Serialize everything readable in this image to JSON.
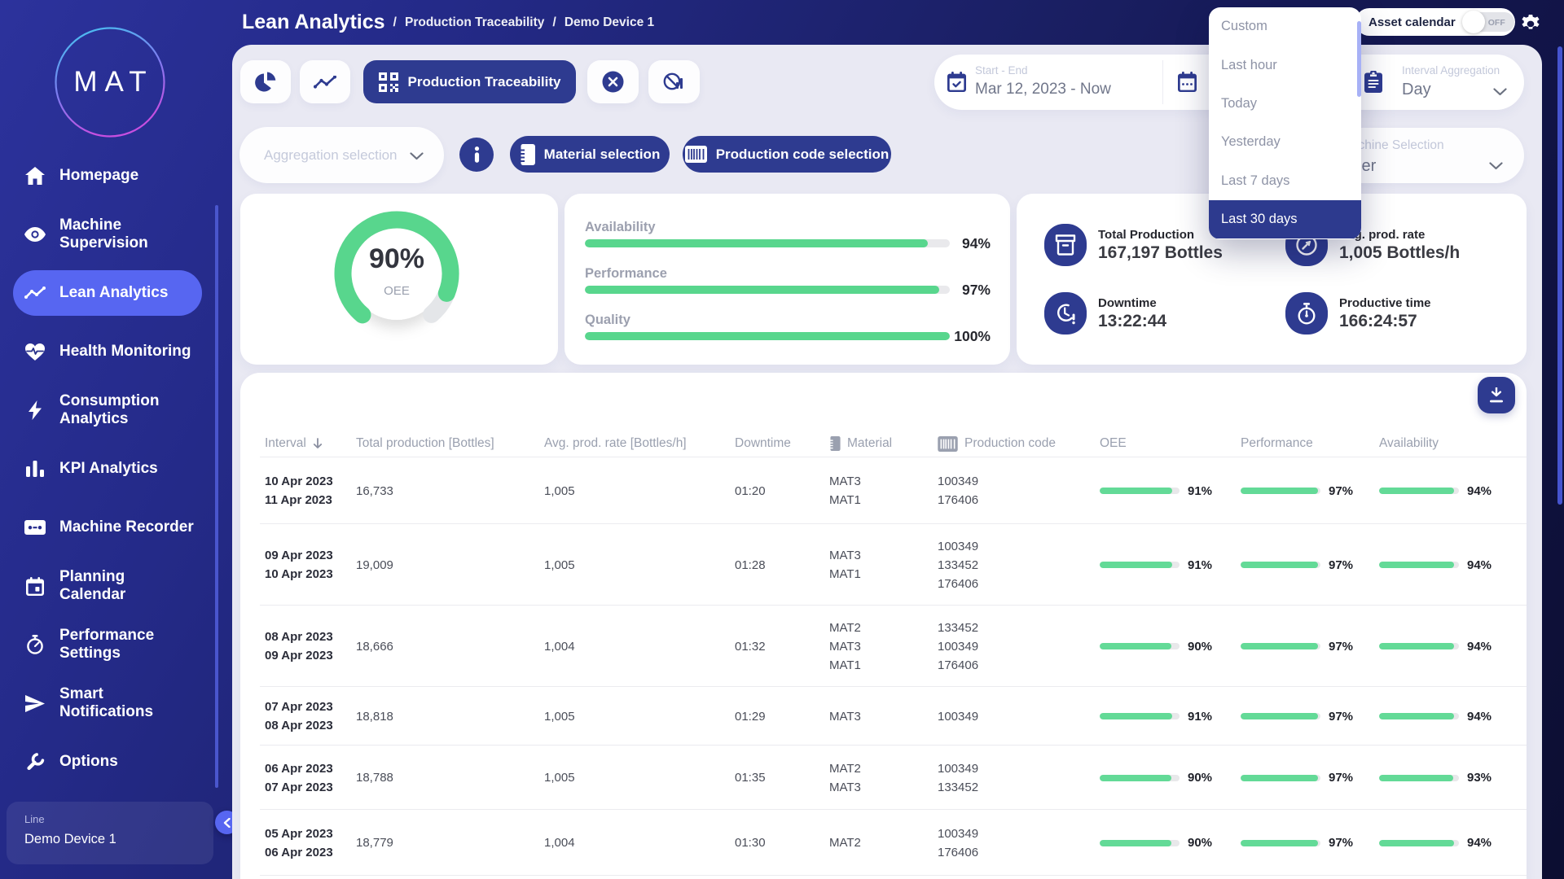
{
  "colors": {
    "navy": "#2e3b90",
    "periwinkle": "#5766f1",
    "green": "#58d68d",
    "table_green": "#63da97"
  },
  "sidebar": {
    "logo_text": "MAT",
    "items": [
      {
        "label": "Homepage",
        "icon": "home-icon"
      },
      {
        "label": "Machine Supervision",
        "icon": "eye-icon"
      },
      {
        "label": "Lean Analytics",
        "icon": "trend-icon",
        "active": true
      },
      {
        "label": "Health Monitoring",
        "icon": "heart-pulse-icon"
      },
      {
        "label": "Consumption Analytics",
        "icon": "bolt-icon"
      },
      {
        "label": "KPI Analytics",
        "icon": "bar-chart-icon"
      },
      {
        "label": "Machine Recorder",
        "icon": "recorder-icon"
      },
      {
        "label": "Planning Calendar",
        "icon": "calendar-icon"
      },
      {
        "label": "Performance Settings",
        "icon": "stopwatch-icon"
      },
      {
        "label": "Smart Notifications",
        "icon": "send-icon"
      },
      {
        "label": "Options",
        "icon": "wrench-icon"
      }
    ],
    "device": {
      "label": "Line",
      "name": "Demo Device 1"
    }
  },
  "header": {
    "title": "Lean Analytics",
    "breadcrumb": [
      "Production Traceability",
      "Demo Device 1"
    ],
    "asset_calendar_label": "Asset calendar",
    "asset_calendar_state": "OFF"
  },
  "toolbar": {
    "active_view": "Production Traceability",
    "date_label": "Start - End",
    "date_value": "Mar 12, 2023 - Now",
    "interval_label": "Interval Aggregation",
    "interval_value": "Day"
  },
  "filters": {
    "aggregation_placeholder": "Aggregation selection",
    "material_button": "Material selection",
    "production_code_button": "Production code selection",
    "machine_label": "Machine Selection",
    "machine_value": "Filler"
  },
  "date_menu": {
    "items": [
      "Custom",
      "Last hour",
      "Today",
      "Yesterday",
      "Last 7 days",
      "Last 30 days"
    ],
    "selected": "Last 30 days"
  },
  "kpis": {
    "oee_gauge": {
      "value": 90,
      "label": "OEE"
    },
    "metrics": [
      {
        "label": "Availability",
        "value": 94
      },
      {
        "label": "Performance",
        "value": 97
      },
      {
        "label": "Quality",
        "value": 100
      }
    ],
    "stats": [
      {
        "label": "Total Production",
        "value": "167,197 Bottles"
      },
      {
        "label": "Avg. prod. rate",
        "value": "1,005 Bottles/h"
      },
      {
        "label": "Downtime",
        "value": "13:22:44"
      },
      {
        "label": "Productive time",
        "value": "166:24:57"
      }
    ]
  },
  "table": {
    "columns": [
      "Interval",
      "Total production [Bottles]",
      "Avg. prod. rate [Bottles/h]",
      "Downtime",
      "Material",
      "Production code",
      "OEE",
      "Performance",
      "Availability"
    ],
    "rows": [
      {
        "interval": [
          "10 Apr 2023",
          "11 Apr 2023"
        ],
        "total": "16,733",
        "rate": "1,005",
        "downtime": "01:20",
        "materials": [
          "MAT3",
          "MAT1"
        ],
        "codes": [
          "100349",
          "176406"
        ],
        "oee": 91,
        "performance": 97,
        "availability": 94
      },
      {
        "interval": [
          "09 Apr 2023",
          "10 Apr 2023"
        ],
        "total": "19,009",
        "rate": "1,005",
        "downtime": "01:28",
        "materials": [
          "MAT3",
          "MAT1"
        ],
        "codes": [
          "100349",
          "133452",
          "176406"
        ],
        "oee": 91,
        "performance": 97,
        "availability": 94
      },
      {
        "interval": [
          "08 Apr 2023",
          "09 Apr 2023"
        ],
        "total": "18,666",
        "rate": "1,004",
        "downtime": "01:32",
        "materials": [
          "MAT2",
          "MAT3",
          "MAT1"
        ],
        "codes": [
          "133452",
          "100349",
          "176406"
        ],
        "oee": 90,
        "performance": 97,
        "availability": 94
      },
      {
        "interval": [
          "07 Apr 2023",
          "08 Apr 2023"
        ],
        "total": "18,818",
        "rate": "1,005",
        "downtime": "01:29",
        "materials": [
          "MAT3"
        ],
        "codes": [
          "100349"
        ],
        "oee": 91,
        "performance": 97,
        "availability": 94
      },
      {
        "interval": [
          "06 Apr 2023",
          "07 Apr 2023"
        ],
        "total": "18,788",
        "rate": "1,005",
        "downtime": "01:35",
        "materials": [
          "MAT2",
          "MAT3"
        ],
        "codes": [
          "100349",
          "133452"
        ],
        "oee": 90,
        "performance": 97,
        "availability": 93
      },
      {
        "interval": [
          "05 Apr 2023",
          "06 Apr 2023"
        ],
        "total": "18,779",
        "rate": "1,004",
        "downtime": "01:30",
        "materials": [
          "MAT2"
        ],
        "codes": [
          "100349",
          "176406"
        ],
        "oee": 90,
        "performance": 97,
        "availability": 94
      }
    ]
  }
}
